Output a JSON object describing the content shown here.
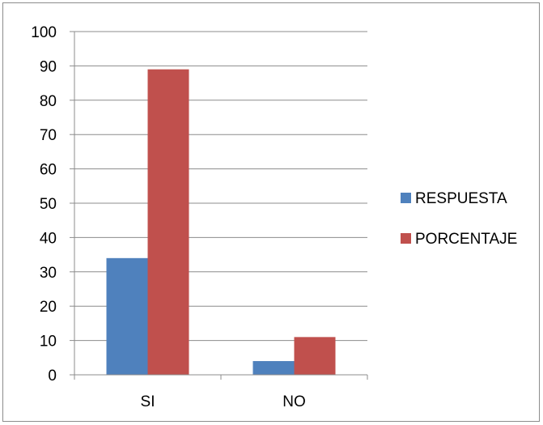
{
  "chart_data": {
    "type": "bar",
    "categories": [
      "SI",
      "NO"
    ],
    "series": [
      {
        "name": "RESPUESTA",
        "values": [
          34,
          4
        ],
        "color": "#4f81bd"
      },
      {
        "name": "PORCENTAJE",
        "values": [
          89,
          11
        ],
        "color": "#c0504d"
      }
    ],
    "ylim": [
      0,
      100
    ],
    "yticks": [
      0,
      10,
      20,
      30,
      40,
      50,
      60,
      70,
      80,
      90,
      100
    ],
    "grid": true,
    "legend": "right"
  }
}
